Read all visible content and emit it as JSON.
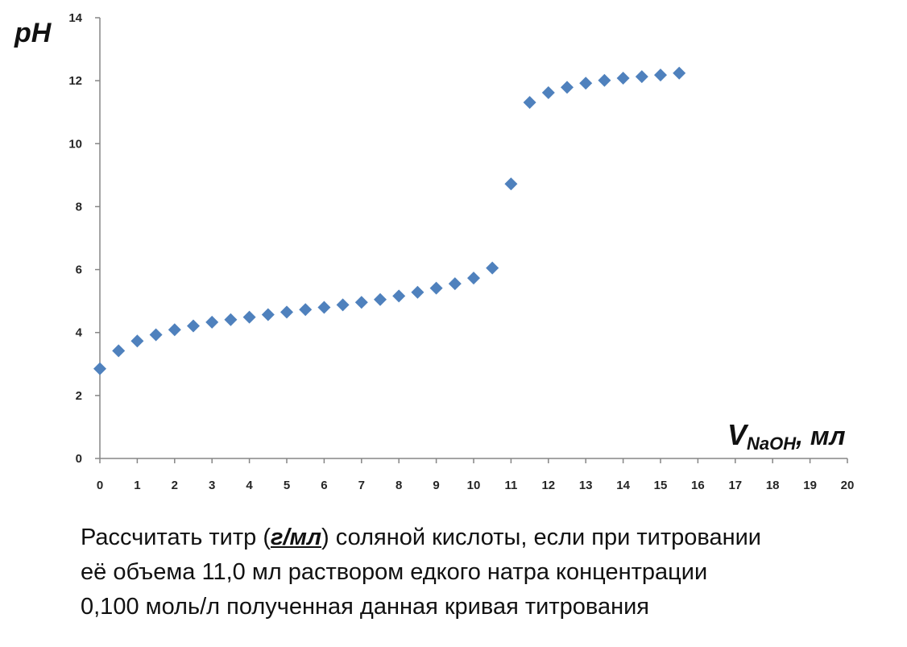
{
  "chart_data": {
    "type": "scatter",
    "title": "",
    "ylabel": "pH",
    "xlabel": {
      "main": "V",
      "sub": "NaOH",
      "unit": ", мл"
    },
    "xlim": [
      0,
      20
    ],
    "ylim": [
      0,
      14
    ],
    "x_ticks": [
      0,
      1,
      2,
      3,
      4,
      5,
      6,
      7,
      8,
      9,
      10,
      11,
      12,
      13,
      14,
      15,
      16,
      17,
      18,
      19,
      20
    ],
    "y_ticks": [
      0,
      2,
      4,
      6,
      8,
      10,
      12,
      14
    ],
    "grid": false,
    "legend": "none",
    "marker": "diamond",
    "color": "#4F81BD",
    "series": [
      {
        "x": [
          0,
          0.5,
          1,
          1.5,
          2,
          2.5,
          3,
          3.5,
          4,
          4.5,
          5,
          5.5,
          6,
          6.5,
          7,
          7.5,
          8,
          8.5,
          9,
          9.5,
          10,
          10.5,
          11,
          11.5,
          12,
          12.5,
          13,
          13.5,
          14,
          14.5,
          15,
          15.5
        ],
        "y": [
          2.85,
          3.42,
          3.73,
          3.93,
          4.09,
          4.21,
          4.33,
          4.41,
          4.49,
          4.57,
          4.65,
          4.73,
          4.8,
          4.88,
          4.96,
          5.05,
          5.16,
          5.28,
          5.41,
          5.55,
          5.73,
          6.05,
          8.72,
          11.31,
          11.62,
          11.79,
          11.92,
          12.01,
          12.08,
          12.13,
          12.18,
          12.24
        ]
      }
    ]
  },
  "problem": {
    "line1_before": "Рассчитать титр (",
    "line1_units": "г/мл",
    "line1_after": ") соляной кислоты, если при титровании",
    "line2": "её объема 11,0 мл раствором едкого натра концентрации",
    "line3": "0,100 моль/л полученная данная кривая титрования"
  }
}
